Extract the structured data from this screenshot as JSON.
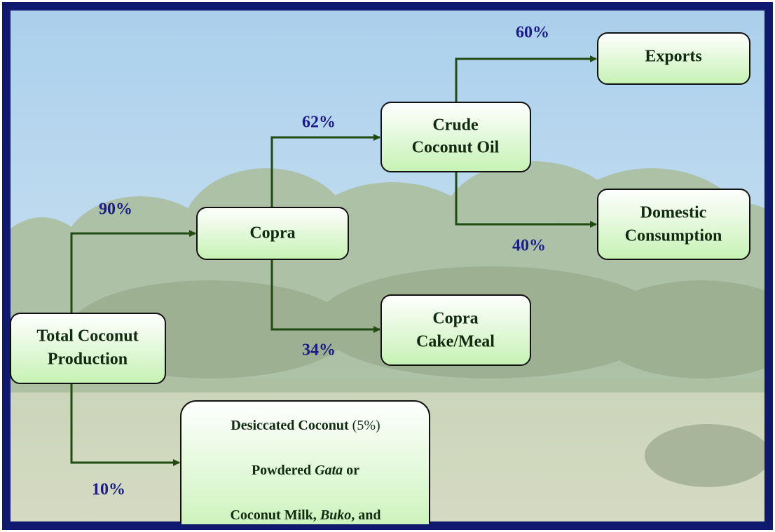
{
  "nodes": {
    "total": [
      "Total Coconut",
      "Production"
    ],
    "copra": [
      "Copra"
    ],
    "crude_oil": [
      "Crude",
      "Coconut Oil"
    ],
    "cake": [
      "Copra",
      "Cake/Meal"
    ],
    "exports": [
      "Exports"
    ],
    "domestic": [
      "Domestic",
      "Consumption"
    ],
    "desiccated": {
      "line1": [
        "Desiccated Coconut",
        "(5%)"
      ],
      "line2": [
        "Powdered",
        "Gata",
        "or"
      ],
      "line3": [
        "Coconut Milk,",
        "Buko",
        ", and"
      ]
    }
  },
  "edges": {
    "to_copra": "90%",
    "to_desiccated": "10%",
    "to_crude_oil": "62%",
    "to_cake": "34%",
    "to_exports": "60%",
    "to_domestic": "40%"
  }
}
